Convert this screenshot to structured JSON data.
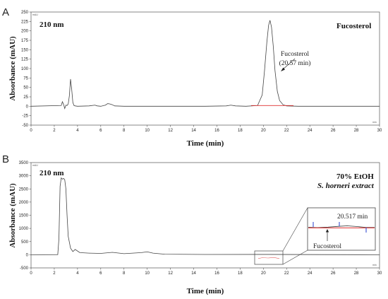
{
  "panels": [
    {
      "letter": "A",
      "wavelength": "210 nm",
      "sample_label": [
        "Fucosterol"
      ],
      "peak_annotation": [
        "Fucosterol",
        "(20.57 min)"
      ],
      "corner_left": "mAU",
      "corner_right": "min"
    },
    {
      "letter": "B",
      "wavelength": "210 nm",
      "sample_label": [
        "70% EtOH",
        "S. horneri extract"
      ],
      "inset_time": "20.517 min",
      "inset_compound": "Fucosterol",
      "corner_left": "mAU",
      "corner_right": "min"
    }
  ],
  "chart_data": [
    {
      "type": "line",
      "title": "",
      "xlabel": "Time (min)",
      "ylabel": "Absorbance (mAU)",
      "xlim": [
        0,
        30
      ],
      "ylim": [
        -50,
        250
      ],
      "x_ticks": [
        0,
        2,
        4,
        6,
        8,
        10,
        12,
        14,
        16,
        18,
        20,
        22,
        24,
        26,
        28,
        30
      ],
      "y_ticks": [
        -50,
        -25,
        0,
        25,
        50,
        75,
        100,
        125,
        150,
        175,
        200,
        225,
        250
      ],
      "series": [
        {
          "x": [
            0,
            2.6,
            2.7,
            2.8,
            2.9,
            3.0,
            3.1,
            3.2,
            3.3,
            3.4,
            3.5,
            3.6,
            3.7,
            3.8,
            4.0,
            5.0,
            5.5,
            5.7,
            6.0,
            6.4,
            6.6,
            6.8,
            7.0,
            7.2,
            8.0,
            10.0,
            15.0,
            16.8,
            17.2,
            17.6,
            18.5,
            19.5,
            19.9,
            20.1,
            20.3,
            20.45,
            20.57,
            20.7,
            20.85,
            21.0,
            21.2,
            21.4,
            21.7,
            22.0,
            23.0,
            30.0
          ],
          "y": [
            0,
            2,
            12,
            5,
            -6,
            3,
            2,
            6,
            28,
            72,
            45,
            10,
            2,
            1,
            0,
            1,
            3,
            1,
            0,
            3,
            7,
            6,
            4,
            1,
            0,
            0,
            0,
            1,
            3,
            1,
            0,
            2,
            30,
            95,
            170,
            215,
            228,
            210,
            160,
            95,
            40,
            15,
            4,
            1,
            0,
            0
          ]
        }
      ]
    },
    {
      "type": "line",
      "title": "",
      "xlabel": "Time (min)",
      "ylabel": "Absorbance (mAU)",
      "xlim": [
        0,
        30
      ],
      "ylim": [
        -500,
        3500
      ],
      "x_ticks": [
        0,
        2,
        4,
        6,
        8,
        10,
        12,
        14,
        16,
        18,
        20,
        22,
        24,
        26,
        28,
        30
      ],
      "y_ticks": [
        -500,
        0,
        500,
        1000,
        1500,
        2000,
        2500,
        3000,
        3500
      ],
      "series": [
        {
          "x": [
            0,
            2.3,
            2.4,
            2.5,
            2.6,
            2.7,
            2.8,
            2.9,
            3.0,
            3.1,
            3.2,
            3.4,
            3.6,
            3.8,
            4.2,
            5.0,
            6.0,
            7.0,
            8.0,
            9.5,
            10.0,
            10.5,
            11.5,
            15.0,
            20.0,
            25.0,
            30.0
          ],
          "y": [
            0,
            5,
            600,
            2600,
            2920,
            2870,
            2900,
            2850,
            2500,
            1500,
            700,
            250,
            120,
            200,
            80,
            60,
            50,
            90,
            40,
            80,
            110,
            60,
            20,
            10,
            12,
            5,
            0
          ]
        }
      ]
    }
  ]
}
